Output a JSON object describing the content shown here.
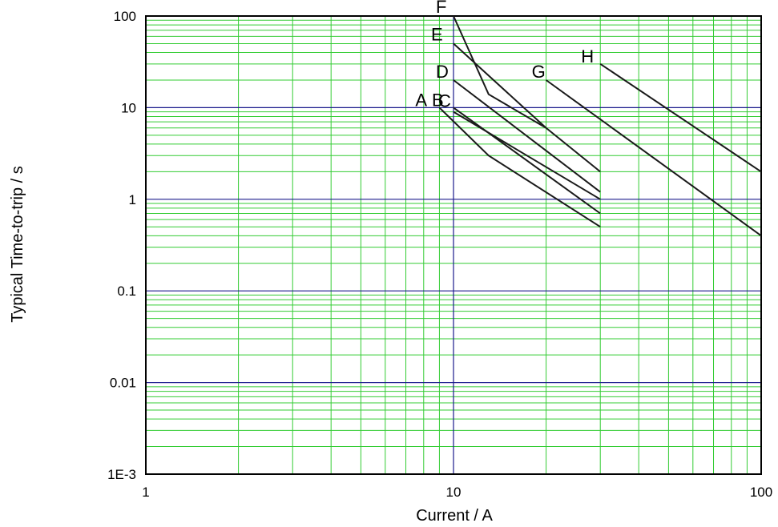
{
  "chart_data": {
    "type": "line",
    "xlabel": "Current / A",
    "ylabel": "Typical Time-to-trip / s",
    "xscale": "log",
    "yscale": "log",
    "xlim": [
      1,
      100
    ],
    "ylim": [
      0.001,
      100
    ],
    "x_ticks": [
      {
        "value": 1,
        "label": "1"
      },
      {
        "value": 10,
        "label": "10"
      },
      {
        "value": 100,
        "label": "100"
      }
    ],
    "y_ticks": [
      {
        "value": 100,
        "label": "100"
      },
      {
        "value": 10,
        "label": "10"
      },
      {
        "value": 1,
        "label": "1"
      },
      {
        "value": 0.1,
        "label": "0.1"
      },
      {
        "value": 0.01,
        "label": "0.01"
      },
      {
        "value": 0.001,
        "label": "1E-3"
      }
    ],
    "grid": true,
    "colors": {
      "minor_grid": "#33cc33",
      "major_grid": "#1a1a8c",
      "frame": "#000000",
      "series": "#1a1a1a"
    },
    "series": [
      {
        "label": "A",
        "x": [
          9,
          13,
          30
        ],
        "y": [
          10,
          3,
          0.5
        ]
      },
      {
        "label": "B",
        "x": [
          10,
          30
        ],
        "y": [
          10,
          0.7
        ]
      },
      {
        "label": "C",
        "x": [
          10,
          30
        ],
        "y": [
          9,
          1
        ]
      },
      {
        "label": "D",
        "x": [
          10,
          30
        ],
        "y": [
          20,
          1.2
        ]
      },
      {
        "label": "E",
        "x": [
          10,
          20,
          30
        ],
        "y": [
          50,
          6,
          2
        ]
      },
      {
        "label": "F",
        "x": [
          10,
          13,
          20
        ],
        "y": [
          100,
          14,
          6
        ]
      },
      {
        "label": "G",
        "x": [
          20,
          100
        ],
        "y": [
          20,
          0.4
        ]
      },
      {
        "label": "H",
        "x": [
          30,
          100
        ],
        "y": [
          30,
          2
        ]
      }
    ]
  }
}
